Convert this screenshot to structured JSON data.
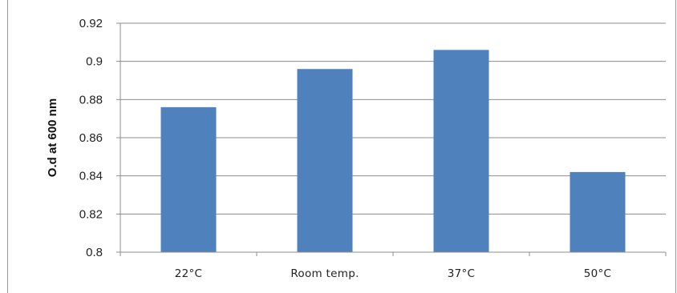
{
  "chart_data": {
    "type": "bar",
    "title": "",
    "xlabel": "",
    "ylabel": "O.d at 600 nm",
    "categories": [
      "22°C",
      "Room temp.",
      "37°C",
      "50°C"
    ],
    "values": [
      0.876,
      0.896,
      0.906,
      0.842
    ],
    "ylim": [
      0.8,
      0.92
    ],
    "yticks": [
      "0.8",
      "0.82",
      "0.84",
      "0.86",
      "0.88",
      "0.9",
      "0.92"
    ],
    "grid": true,
    "legend": "none",
    "colors": {
      "bar": "#4f81bd",
      "grid": "#8c8c8c",
      "axis": "#8c8c8c"
    }
  }
}
